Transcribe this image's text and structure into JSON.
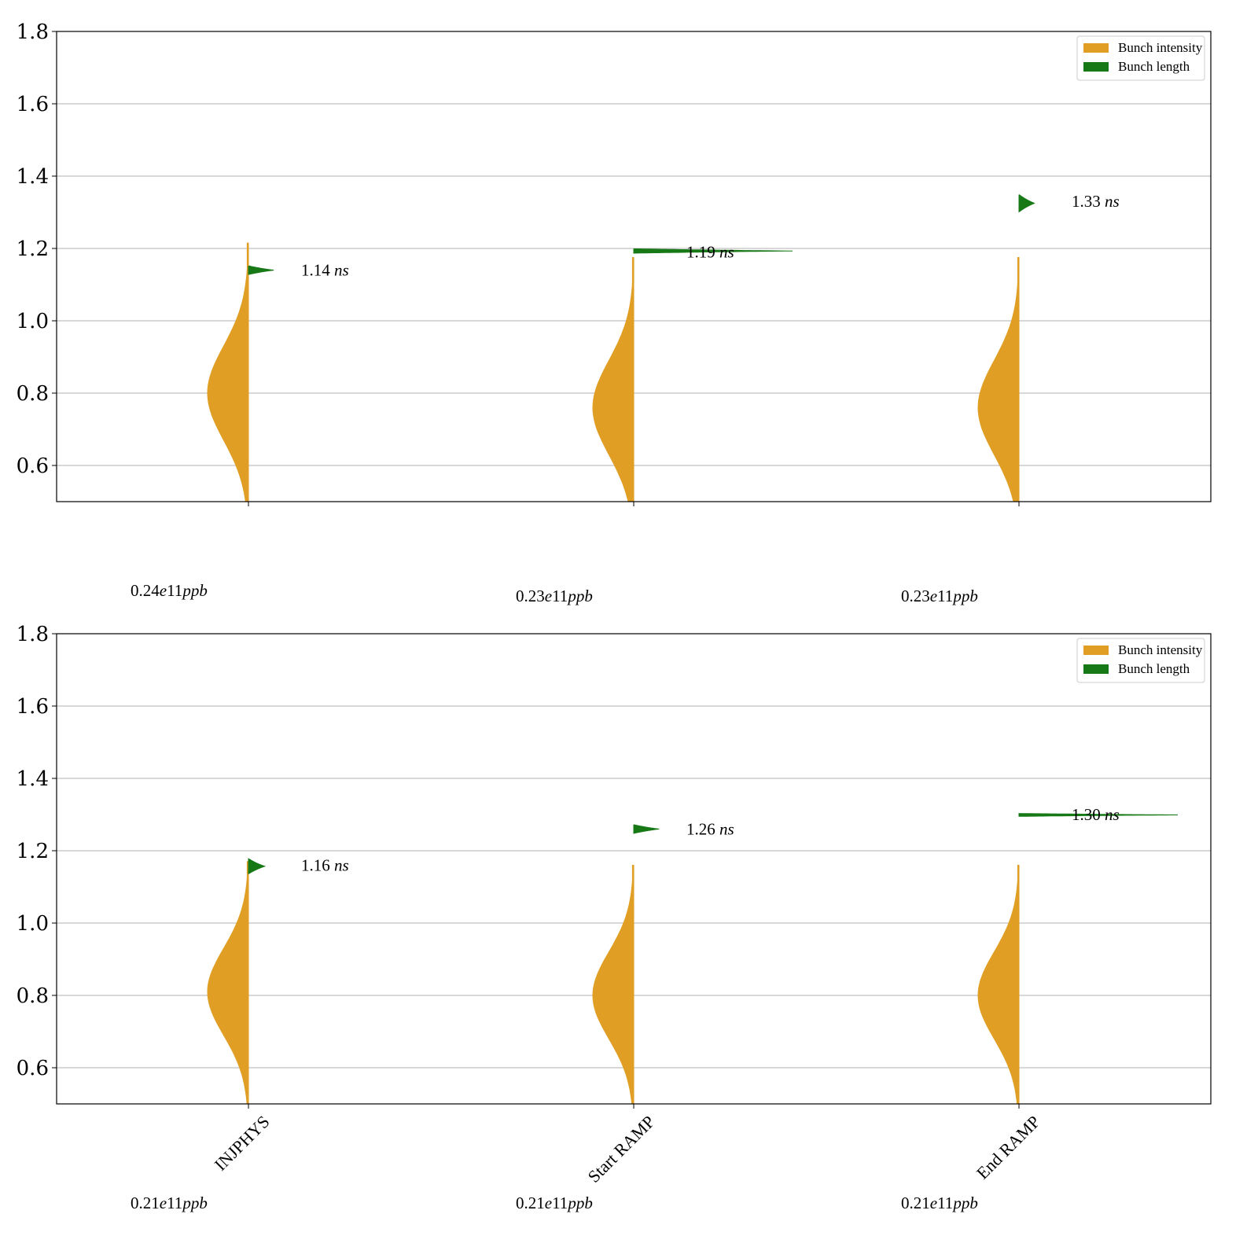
{
  "colors": {
    "intensity": "#E09E24",
    "length": "#167916",
    "grid": "#b0b0b0"
  },
  "chart_data": [
    {
      "type": "violin",
      "ylim": [
        0.5,
        1.8
      ],
      "yticks": [
        "0.6",
        "0.8",
        "1.0",
        "1.2",
        "1.4",
        "1.6",
        "1.8"
      ],
      "grid": true,
      "legend_position": "top-right",
      "legend": [
        "Bunch intensity",
        "Bunch length"
      ],
      "categories": [
        "INJPHYS",
        "Start RAMP",
        "End RAMP"
      ],
      "show_category_labels": false,
      "intensity_labels": [
        "0.24e11ppb",
        "0.23e11ppb",
        "0.23e11ppb"
      ],
      "intensity_violins": [
        {
          "min": 0.5,
          "max": 1.215,
          "center": 0.8,
          "spread": 0.13
        },
        {
          "min": 0.5,
          "max": 1.175,
          "center": 0.76,
          "spread": 0.13
        },
        {
          "min": 0.5,
          "max": 1.175,
          "center": 0.76,
          "spread": 0.13
        }
      ],
      "length_values": [
        1.14,
        1.19,
        1.33
      ],
      "length_labels": [
        "1.14 ns",
        "1.19 ns",
        "1.33 ns"
      ],
      "length_violins": [
        {
          "center": 1.14,
          "halfwidth": 0.012,
          "reach": 0.14
        },
        {
          "center": 1.193,
          "halfwidth": 0.006,
          "reach": 0.4
        },
        {
          "center": 1.325,
          "halfwidth": 0.024,
          "reach": 0.085
        }
      ]
    },
    {
      "type": "violin",
      "ylim": [
        0.5,
        1.8
      ],
      "yticks": [
        "0.6",
        "0.8",
        "1.0",
        "1.2",
        "1.4",
        "1.6",
        "1.8"
      ],
      "grid": true,
      "legend_position": "top-right",
      "legend": [
        "Bunch intensity",
        "Bunch length"
      ],
      "categories": [
        "INJPHYS",
        "Start RAMP",
        "End RAMP"
      ],
      "show_category_labels": true,
      "intensity_labels": [
        "0.21e11ppb",
        "0.21e11ppb",
        "0.21e11ppb"
      ],
      "intensity_violins": [
        {
          "min": 0.5,
          "max": 1.17,
          "center": 0.81,
          "spread": 0.12
        },
        {
          "min": 0.5,
          "max": 1.16,
          "center": 0.8,
          "spread": 0.12
        },
        {
          "min": 0.5,
          "max": 1.16,
          "center": 0.8,
          "spread": 0.12
        }
      ],
      "length_values": [
        1.16,
        1.26,
        1.3
      ],
      "length_labels": [
        "1.16 ns",
        "1.26 ns",
        "1.30 ns"
      ],
      "length_violins": [
        {
          "center": 1.157,
          "halfwidth": 0.021,
          "reach": 0.09
        },
        {
          "center": 1.26,
          "halfwidth": 0.012,
          "reach": 0.14
        },
        {
          "center": 1.299,
          "halfwidth": 0.004,
          "reach": 0.4
        }
      ]
    }
  ]
}
